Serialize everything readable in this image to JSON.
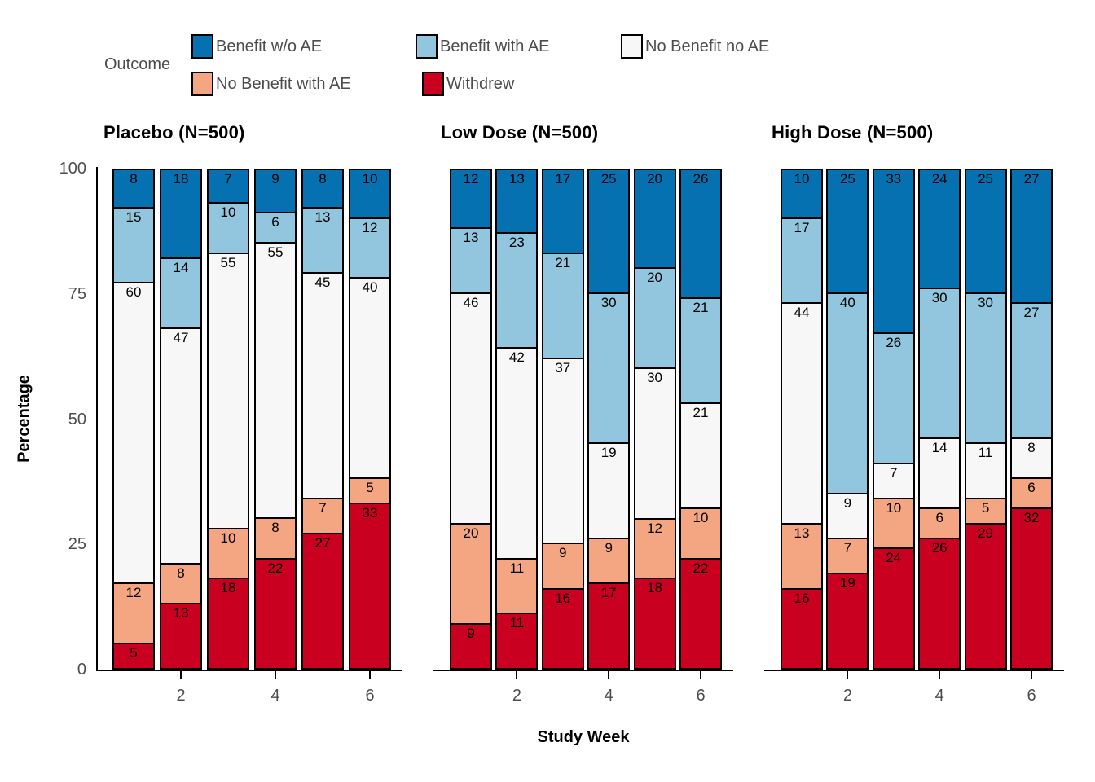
{
  "legend": {
    "title": "Outcome",
    "items": [
      {
        "label": "Benefit w/o AE",
        "color": "#0571B0"
      },
      {
        "label": "Benefit with AE",
        "color": "#92C5DE"
      },
      {
        "label": "No Benefit no AE",
        "color": "#F7F7F7"
      },
      {
        "label": "No Benefit with AE",
        "color": "#F4A582"
      },
      {
        "label": "Withdrew",
        "color": "#CA0020"
      }
    ]
  },
  "axes": {
    "y_title": "Percentage",
    "x_title": "Study Week",
    "y_ticks": [
      100,
      75,
      50,
      25,
      0
    ],
    "x_ticks": [
      2,
      4,
      6
    ]
  },
  "chart_data": {
    "type": "bar",
    "stacked": true,
    "unit": "percent",
    "ylim": [
      0,
      100
    ],
    "ylabel": "Percentage",
    "xlabel": "Study Week",
    "grid": false,
    "legend_title": "Outcome",
    "legend_position": "top",
    "x": [
      1,
      2,
      3,
      4,
      5,
      6
    ],
    "stack_order_top_to_bottom": [
      "Benefit w/o AE",
      "Benefit with AE",
      "No Benefit no AE",
      "No Benefit with AE",
      "Withdrew"
    ],
    "panels": [
      {
        "title": "Placebo (N=500)",
        "series": [
          {
            "name": "Benefit w/o AE",
            "values": [
              8,
              18,
              7,
              9,
              8,
              10
            ]
          },
          {
            "name": "Benefit with AE",
            "values": [
              15,
              14,
              10,
              6,
              13,
              12
            ]
          },
          {
            "name": "No Benefit no AE",
            "values": [
              60,
              47,
              55,
              55,
              45,
              40
            ]
          },
          {
            "name": "No Benefit with AE",
            "values": [
              12,
              8,
              10,
              8,
              7,
              5
            ]
          },
          {
            "name": "Withdrew",
            "values": [
              5,
              13,
              18,
              22,
              27,
              33
            ]
          }
        ]
      },
      {
        "title": "Low Dose (N=500)",
        "series": [
          {
            "name": "Benefit w/o AE",
            "values": [
              12,
              13,
              17,
              25,
              20,
              26
            ]
          },
          {
            "name": "Benefit with AE",
            "values": [
              13,
              23,
              21,
              30,
              20,
              21
            ]
          },
          {
            "name": "No Benefit no AE",
            "values": [
              46,
              42,
              37,
              19,
              30,
              21
            ]
          },
          {
            "name": "No Benefit with AE",
            "values": [
              20,
              11,
              9,
              9,
              12,
              10
            ]
          },
          {
            "name": "Withdrew",
            "values": [
              9,
              11,
              16,
              17,
              18,
              22
            ]
          }
        ]
      },
      {
        "title": "High Dose (N=500)",
        "series": [
          {
            "name": "Benefit w/o AE",
            "values": [
              10,
              25,
              33,
              24,
              25,
              27
            ]
          },
          {
            "name": "Benefit with AE",
            "values": [
              17,
              40,
              26,
              30,
              30,
              27
            ]
          },
          {
            "name": "No Benefit no AE",
            "values": [
              44,
              9,
              7,
              14,
              11,
              8
            ]
          },
          {
            "name": "No Benefit with AE",
            "values": [
              13,
              7,
              10,
              6,
              5,
              6
            ]
          },
          {
            "name": "Withdrew",
            "values": [
              16,
              19,
              24,
              26,
              29,
              32
            ]
          }
        ]
      }
    ]
  }
}
